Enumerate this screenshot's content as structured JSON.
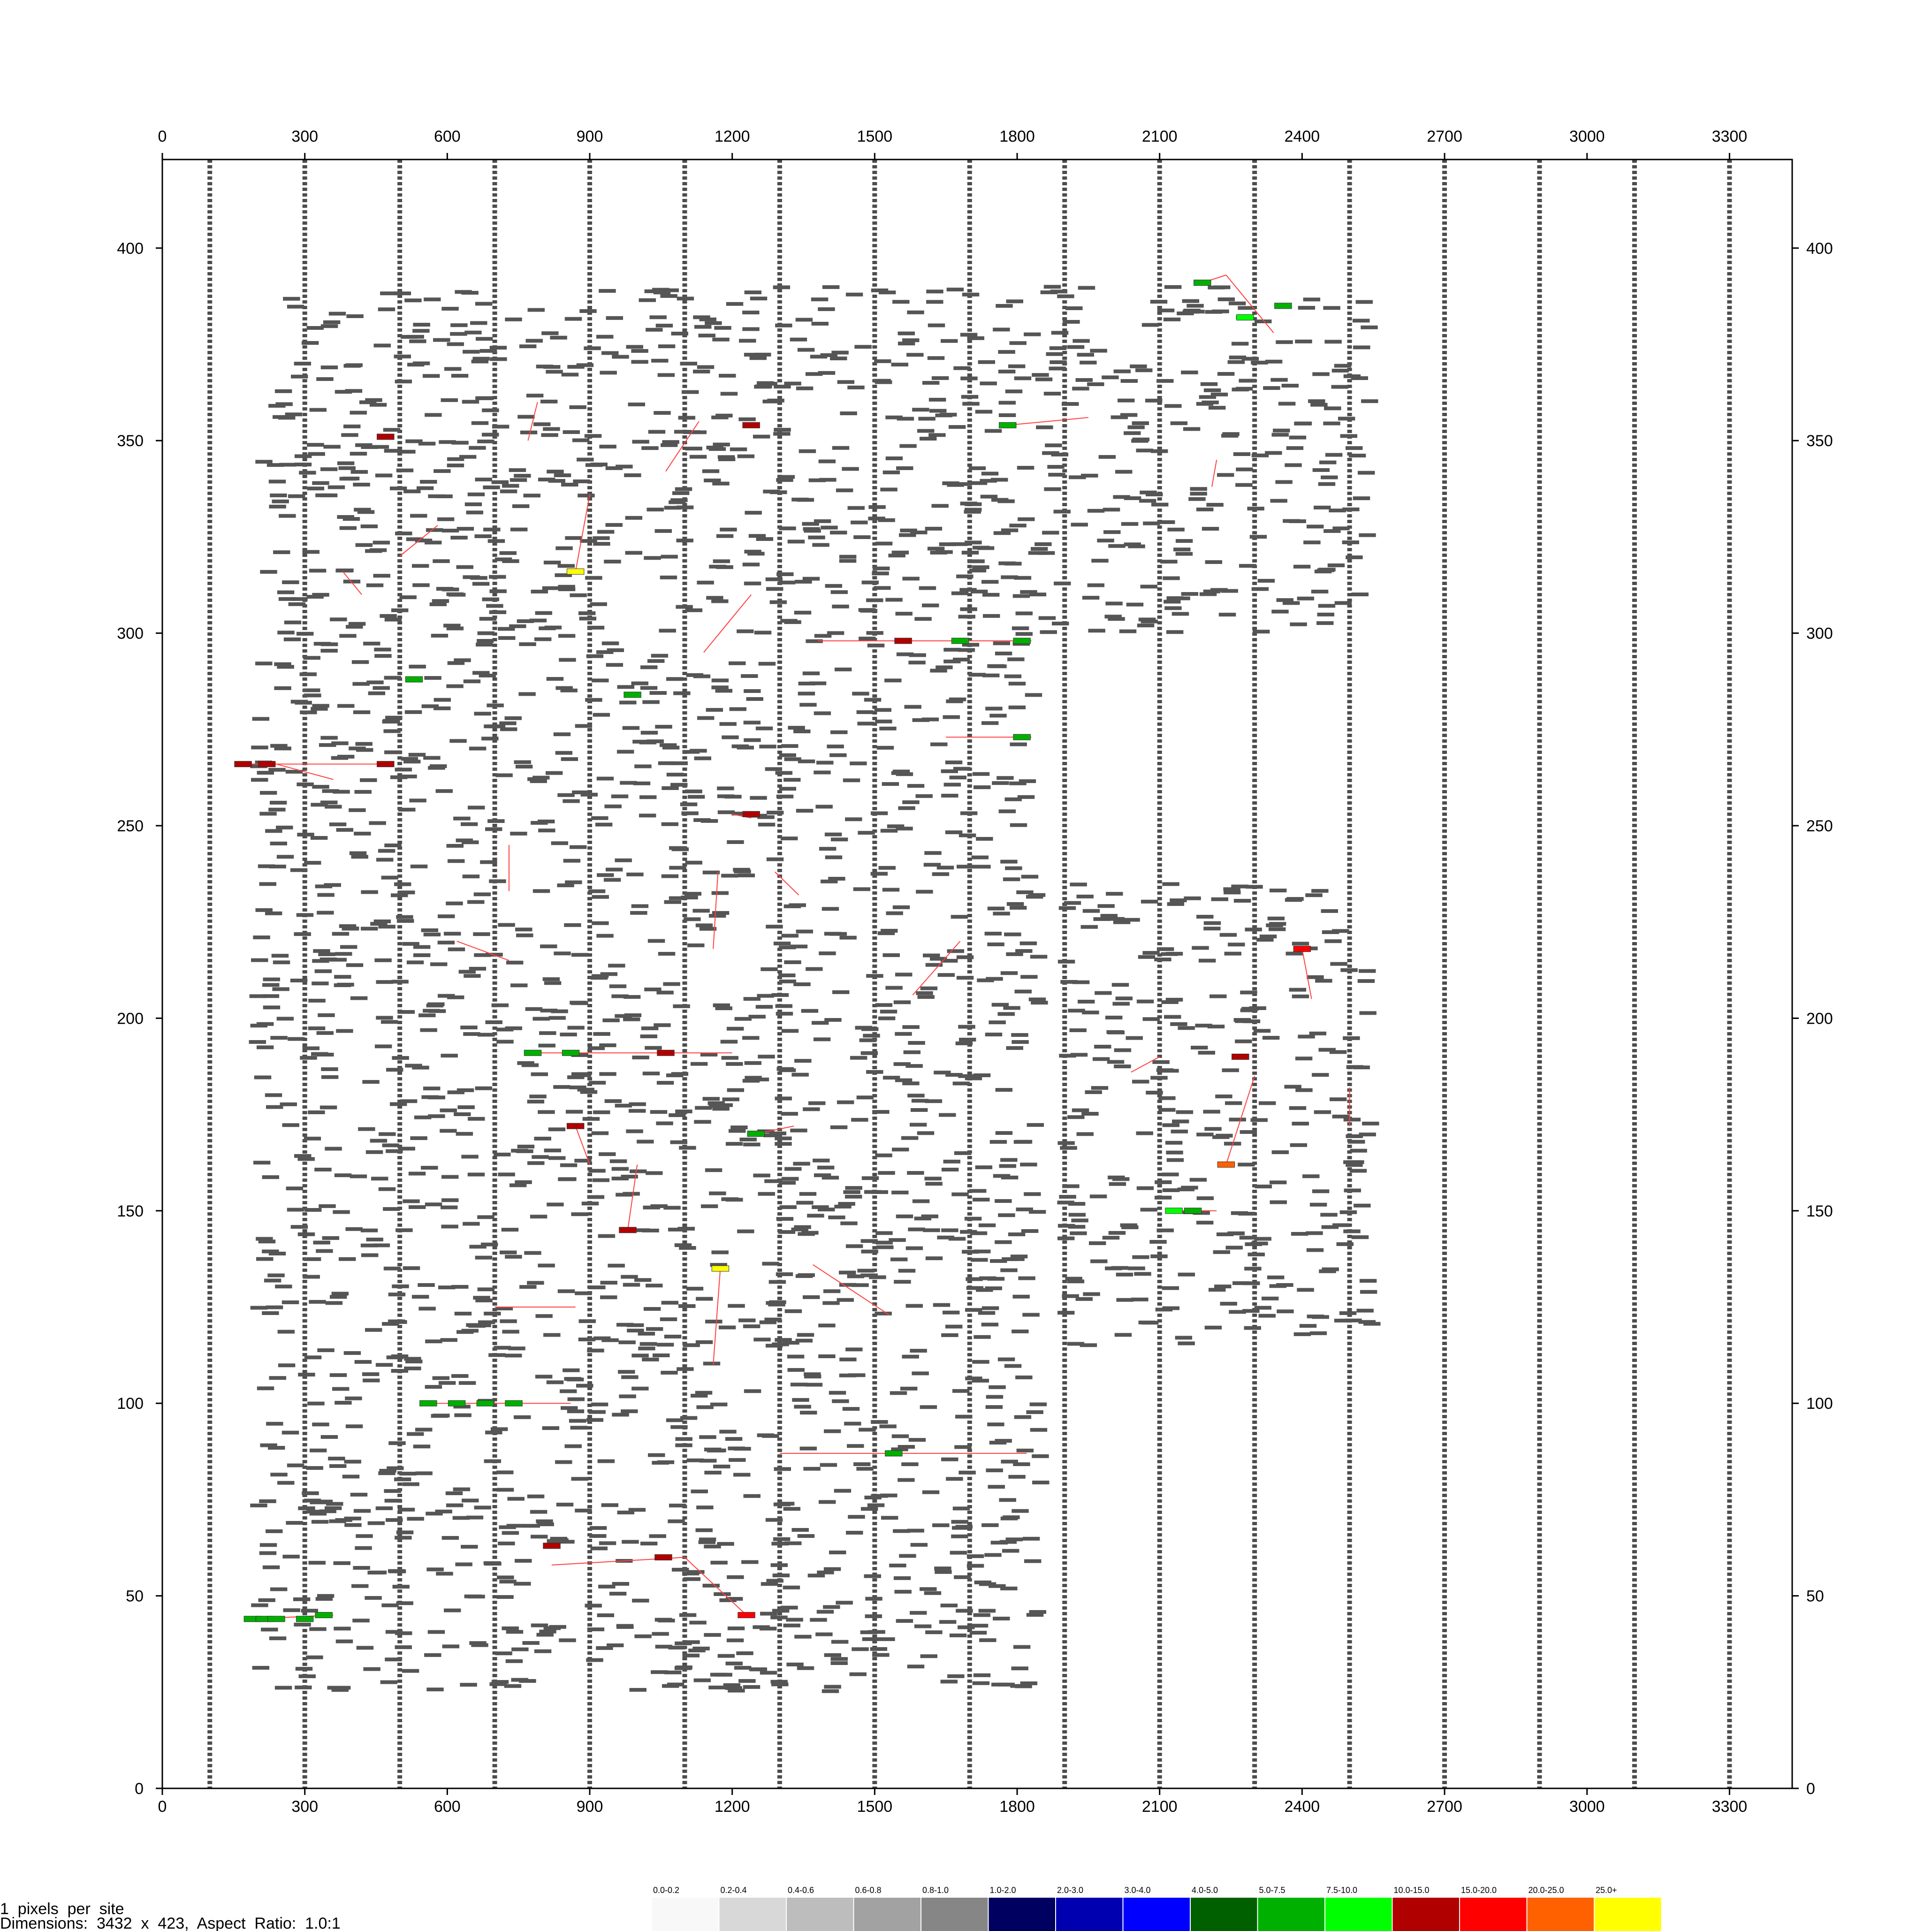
{
  "chart_data": {
    "type": "scatter",
    "title": "",
    "xlabel": "",
    "ylabel": "",
    "xlim": [
      0,
      3432
    ],
    "ylim": [
      0,
      423
    ],
    "x_ticks": [
      0,
      300,
      600,
      900,
      1200,
      1500,
      1800,
      2100,
      2400,
      2700,
      3000,
      3300
    ],
    "y_ticks": [
      0,
      50,
      100,
      150,
      200,
      250,
      300,
      350,
      400
    ],
    "grid": false,
    "dashed_columns_x": [
      100,
      300,
      500,
      700,
      900,
      1100,
      1300,
      1500,
      1700,
      1900,
      2100,
      2300,
      2500,
      2700,
      2900,
      3100,
      3300
    ],
    "block_width": 36,
    "legend_position": "bottom",
    "legend": [
      {
        "label": "0.0-0.2",
        "color": "#f8f8f8"
      },
      {
        "label": "0.2-0.4",
        "color": "#d8d8d8"
      },
      {
        "label": "0.4-0.6",
        "color": "#bdbdbd"
      },
      {
        "label": "0.6-0.8",
        "color": "#a2a2a2"
      },
      {
        "label": "0.8-1.0",
        "color": "#868686"
      },
      {
        "label": "1.0-2.0",
        "color": "#000060"
      },
      {
        "label": "2.0-3.0",
        "color": "#0000b0"
      },
      {
        "label": "3.0-4.0",
        "color": "#0000ff"
      },
      {
        "label": "4.0-5.0",
        "color": "#006000"
      },
      {
        "label": "5.0-7.5",
        "color": "#00b000"
      },
      {
        "label": "7.5-10.0",
        "color": "#00ff00"
      },
      {
        "label": "10.0-15.0",
        "color": "#b00000"
      },
      {
        "label": "15.0-20.0",
        "color": "#ff0000"
      },
      {
        "label": "20.0-25.0",
        "color": "#ff6000"
      },
      {
        "label": "25.0+",
        "color": "#ffff00"
      }
    ],
    "colors": {
      "block": "#555555",
      "link": "#ff4040",
      "axis": "#000000"
    },
    "regions": [
      {
        "x": [
          200,
          1850
        ],
        "y": [
          25,
          390
        ]
      },
      {
        "x": [
          1850,
          2550
        ],
        "y": [
          300,
          390
        ]
      },
      {
        "x": [
          1900,
          2550
        ],
        "y": [
          115,
          235
        ]
      }
    ],
    "colored_blocks": [
      {
        "x": 190,
        "y": 44,
        "color": "#00b000"
      },
      {
        "x": 215,
        "y": 44,
        "color": "#00b000"
      },
      {
        "x": 240,
        "y": 44,
        "color": "#00b000"
      },
      {
        "x": 300,
        "y": 44,
        "color": "#00b000"
      },
      {
        "x": 340,
        "y": 45,
        "color": "#00b000"
      },
      {
        "x": 560,
        "y": 100,
        "color": "#00b000"
      },
      {
        "x": 620,
        "y": 100,
        "color": "#00b000"
      },
      {
        "x": 680,
        "y": 100,
        "color": "#00b000"
      },
      {
        "x": 740,
        "y": 100,
        "color": "#00b000"
      },
      {
        "x": 820,
        "y": 63,
        "color": "#b00000"
      },
      {
        "x": 1055,
        "y": 60,
        "color": "#b00000"
      },
      {
        "x": 1230,
        "y": 45,
        "color": "#ff0000"
      },
      {
        "x": 1540,
        "y": 87,
        "color": "#00b000"
      },
      {
        "x": 1175,
        "y": 135,
        "color": "#ffff00"
      },
      {
        "x": 980,
        "y": 145,
        "color": "#b00000"
      },
      {
        "x": 870,
        "y": 172,
        "color": "#b00000"
      },
      {
        "x": 1250,
        "y": 170,
        "color": "#00b000"
      },
      {
        "x": 780,
        "y": 191,
        "color": "#00b000"
      },
      {
        "x": 860,
        "y": 191,
        "color": "#00b000"
      },
      {
        "x": 1060,
        "y": 191,
        "color": "#b00000"
      },
      {
        "x": 1240,
        "y": 253,
        "color": "#b00000"
      },
      {
        "x": 170,
        "y": 266,
        "color": "#b00000"
      },
      {
        "x": 220,
        "y": 266,
        "color": "#b00000"
      },
      {
        "x": 470,
        "y": 266,
        "color": "#b00000"
      },
      {
        "x": 530,
        "y": 288,
        "color": "#00b000"
      },
      {
        "x": 990,
        "y": 284,
        "color": "#00b000"
      },
      {
        "x": 1560,
        "y": 298,
        "color": "#b00000"
      },
      {
        "x": 1680,
        "y": 298,
        "color": "#00b000"
      },
      {
        "x": 1810,
        "y": 298,
        "color": "#00b000"
      },
      {
        "x": 1810,
        "y": 273,
        "color": "#00b000"
      },
      {
        "x": 870,
        "y": 316,
        "color": "#ffff00"
      },
      {
        "x": 1240,
        "y": 354,
        "color": "#b00000"
      },
      {
        "x": 470,
        "y": 351,
        "color": "#b00000"
      },
      {
        "x": 1780,
        "y": 354,
        "color": "#00b000"
      },
      {
        "x": 2190,
        "y": 391,
        "color": "#00b000"
      },
      {
        "x": 2280,
        "y": 382,
        "color": "#00ff00"
      },
      {
        "x": 2360,
        "y": 385,
        "color": "#00b000"
      },
      {
        "x": 2240,
        "y": 162,
        "color": "#ff6000"
      },
      {
        "x": 2130,
        "y": 150,
        "color": "#00ff00"
      },
      {
        "x": 2170,
        "y": 150,
        "color": "#00b000"
      },
      {
        "x": 2270,
        "y": 190,
        "color": "#b00000"
      },
      {
        "x": 2400,
        "y": 218,
        "color": "#ff0000"
      }
    ],
    "links": [
      {
        "x1": 190,
        "y1": 44,
        "x2": 360,
        "y2": 45
      },
      {
        "x1": 560,
        "y1": 100,
        "x2": 860,
        "y2": 100
      },
      {
        "x1": 820,
        "y1": 58,
        "x2": 1100,
        "y2": 60
      },
      {
        "x1": 1100,
        "y1": 60,
        "x2": 1230,
        "y2": 45
      },
      {
        "x1": 1300,
        "y1": 87,
        "x2": 1820,
        "y2": 87
      },
      {
        "x1": 1175,
        "y1": 135,
        "x2": 1160,
        "y2": 110
      },
      {
        "x1": 980,
        "y1": 145,
        "x2": 1000,
        "y2": 162
      },
      {
        "x1": 870,
        "y1": 172,
        "x2": 900,
        "y2": 162
      },
      {
        "x1": 780,
        "y1": 191,
        "x2": 1200,
        "y2": 191
      },
      {
        "x1": 1250,
        "y1": 170,
        "x2": 1330,
        "y2": 172
      },
      {
        "x1": 170,
        "y1": 266,
        "x2": 470,
        "y2": 266
      },
      {
        "x1": 240,
        "y1": 266,
        "x2": 360,
        "y2": 262
      },
      {
        "x1": 1560,
        "y1": 298,
        "x2": 1830,
        "y2": 298
      },
      {
        "x1": 1380,
        "y1": 298,
        "x2": 1560,
        "y2": 298
      },
      {
        "x1": 1650,
        "y1": 273,
        "x2": 1830,
        "y2": 273
      },
      {
        "x1": 700,
        "y1": 125,
        "x2": 870,
        "y2": 125
      },
      {
        "x1": 1370,
        "y1": 136,
        "x2": 1530,
        "y2": 123
      },
      {
        "x1": 1200,
        "y1": 253,
        "x2": 1240,
        "y2": 252
      },
      {
        "x1": 1580,
        "y1": 206,
        "x2": 1680,
        "y2": 220
      },
      {
        "x1": 1780,
        "y1": 354,
        "x2": 1950,
        "y2": 356
      },
      {
        "x1": 1140,
        "y1": 295,
        "x2": 1240,
        "y2": 310
      },
      {
        "x1": 870,
        "y1": 316,
        "x2": 900,
        "y2": 336
      },
      {
        "x1": 2190,
        "y1": 391,
        "x2": 2240,
        "y2": 393
      },
      {
        "x1": 2240,
        "y1": 393,
        "x2": 2340,
        "y2": 378
      },
      {
        "x1": 2210,
        "y1": 338,
        "x2": 2220,
        "y2": 345
      },
      {
        "x1": 2240,
        "y1": 162,
        "x2": 2300,
        "y2": 185
      },
      {
        "x1": 2130,
        "y1": 150,
        "x2": 2220,
        "y2": 150
      },
      {
        "x1": 2040,
        "y1": 186,
        "x2": 2100,
        "y2": 190
      },
      {
        "x1": 2400,
        "y1": 218,
        "x2": 2420,
        "y2": 205
      },
      {
        "x1": 2500,
        "y1": 172,
        "x2": 2500,
        "y2": 182
      },
      {
        "x1": 1290,
        "y1": 238,
        "x2": 1340,
        "y2": 232
      },
      {
        "x1": 730,
        "y1": 233,
        "x2": 730,
        "y2": 245
      },
      {
        "x1": 620,
        "y1": 220,
        "x2": 730,
        "y2": 215
      },
      {
        "x1": 1160,
        "y1": 218,
        "x2": 1170,
        "y2": 238
      },
      {
        "x1": 770,
        "y1": 350,
        "x2": 790,
        "y2": 360
      },
      {
        "x1": 1060,
        "y1": 342,
        "x2": 1130,
        "y2": 355
      },
      {
        "x1": 500,
        "y1": 320,
        "x2": 580,
        "y2": 328
      },
      {
        "x1": 380,
        "y1": 316,
        "x2": 420,
        "y2": 310
      }
    ]
  },
  "info": {
    "line1": "1  pixels  per  site",
    "line2": "Dimensions:  3432  x  423,  Aspect  Ratio:  1.0:1"
  }
}
